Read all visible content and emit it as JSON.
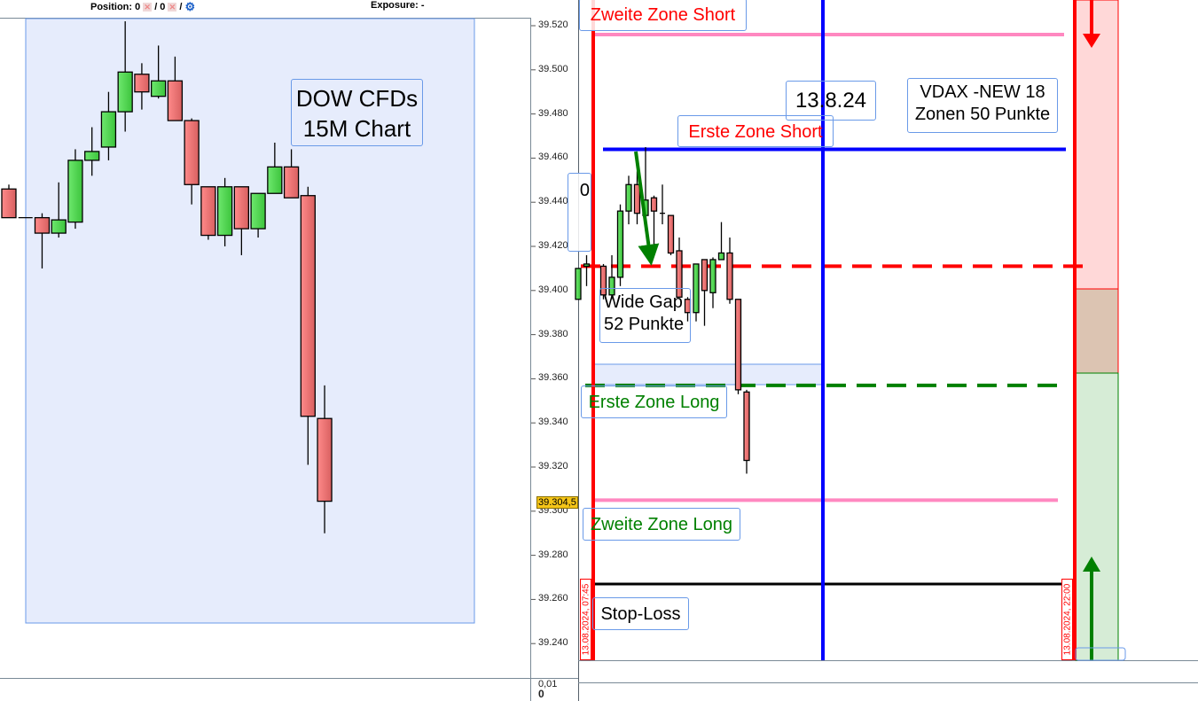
{
  "toolbar": {
    "position_label": "Position:",
    "position_long": "0",
    "position_short": "/ 0",
    "separator": "/",
    "exposure_label": "Exposure: -",
    "settings_icon": "gears-icon"
  },
  "colors": {
    "up": "#44cc44",
    "down": "#e06666",
    "zone_short_text": "#ff0000",
    "zone_long_text": "#008000",
    "blue_line": "#0000ff",
    "pink_line": "#ff88c0",
    "highlight_fill": "#e6ecfc"
  },
  "chart_data": [
    {
      "type": "candlestick",
      "title": "DOW CFDs 15M Chart",
      "annotation": {
        "line1": "DOW CFDs",
        "line2": "15M Chart"
      },
      "ylim": [
        39230,
        39530
      ],
      "y_ticks": [
        "39.520",
        "39.500",
        "39.480",
        "39.460",
        "39.440",
        "39.420",
        "39.400",
        "39.380",
        "39.360",
        "39.340",
        "39.320",
        "39.300",
        "39.280",
        "39.260",
        "39.240"
      ],
      "y_tick_values": [
        39520,
        39500,
        39480,
        39460,
        39440,
        39420,
        39400,
        39380,
        39360,
        39340,
        39320,
        39300,
        39280,
        39260,
        39240
      ],
      "current_price_label": "39.304,5",
      "current_price": 39304.5,
      "sub_panel_ticks": [
        "0,01",
        "0"
      ],
      "candles": [
        {
          "o": 39446,
          "h": 39448,
          "l": 39433,
          "c": 39433
        },
        {
          "o": 39433,
          "h": 39433,
          "l": 39433,
          "c": 39433
        },
        {
          "o": 39433,
          "h": 39435,
          "l": 39410,
          "c": 39426
        },
        {
          "o": 39426,
          "h": 39449,
          "l": 39424,
          "c": 39432
        },
        {
          "o": 39431,
          "h": 39464,
          "l": 39428,
          "c": 39459
        },
        {
          "o": 39459,
          "h": 39474,
          "l": 39452,
          "c": 39463
        },
        {
          "o": 39465,
          "h": 39490,
          "l": 39459,
          "c": 39481
        },
        {
          "o": 39481,
          "h": 39522,
          "l": 39472,
          "c": 39499
        },
        {
          "o": 39498,
          "h": 39503,
          "l": 39482,
          "c": 39490
        },
        {
          "o": 39488,
          "h": 39511,
          "l": 39487,
          "c": 39495
        },
        {
          "o": 39495,
          "h": 39506,
          "l": 39477,
          "c": 39477
        },
        {
          "o": 39477,
          "h": 39478,
          "l": 39439,
          "c": 39448
        },
        {
          "o": 39447,
          "h": 39447,
          "l": 39423,
          "c": 39425
        },
        {
          "o": 39425,
          "h": 39451,
          "l": 39420,
          "c": 39447
        },
        {
          "o": 39447,
          "h": 39447,
          "l": 39416,
          "c": 39428
        },
        {
          "o": 39428,
          "h": 39444,
          "l": 39424,
          "c": 39444
        },
        {
          "o": 39444,
          "h": 39467,
          "l": 39444,
          "c": 39456
        },
        {
          "o": 39456,
          "h": 39464,
          "l": 39442,
          "c": 39442
        },
        {
          "o": 39443,
          "h": 39447,
          "l": 39321,
          "c": 39343
        },
        {
          "o": 39342,
          "h": 39357,
          "l": 39290,
          "c": 39304.5
        }
      ]
    },
    {
      "type": "candlestick",
      "candles": [
        {
          "o": 39396,
          "h": 39410,
          "l": 39396,
          "c": 39410
        },
        {
          "o": 39411,
          "h": 39416,
          "l": 39402,
          "c": 39412
        },
        null,
        {
          "o": 39411,
          "h": 39412,
          "l": 39396,
          "c": 39398
        },
        {
          "o": 39398,
          "h": 39416,
          "l": 39396,
          "c": 39406
        },
        {
          "o": 39406,
          "h": 39439,
          "l": 39402,
          "c": 39436
        },
        {
          "o": 39436,
          "h": 39452,
          "l": 39430,
          "c": 39448
        },
        {
          "o": 39448,
          "h": 39454,
          "l": 39430,
          "c": 39435
        },
        {
          "o": 39434,
          "h": 39465,
          "l": 39427,
          "c": 39441
        },
        {
          "o": 39442,
          "h": 39443,
          "l": 39418,
          "c": 39436
        },
        {
          "o": 39435,
          "h": 39448,
          "l": 39430,
          "c": 39435
        },
        {
          "o": 39434,
          "h": 39434,
          "l": 39416,
          "c": 39417
        },
        {
          "o": 39418,
          "h": 39424,
          "l": 39397,
          "c": 39397
        },
        {
          "o": 39396,
          "h": 39397,
          "l": 39386,
          "c": 39390
        },
        {
          "o": 39390,
          "h": 39412,
          "l": 39386,
          "c": 39412
        },
        {
          "o": 39414,
          "h": 39414,
          "l": 39384,
          "c": 39400
        },
        {
          "o": 39399,
          "h": 39415,
          "l": 39392,
          "c": 39414
        },
        {
          "o": 39414,
          "h": 39431,
          "l": 39414,
          "c": 39417
        },
        {
          "o": 39417,
          "h": 39424,
          "l": 39394,
          "c": 39396
        },
        {
          "o": 39396,
          "h": 39396,
          "l": 39353,
          "c": 39355
        },
        {
          "o": 39354,
          "h": 39355,
          "l": 39317,
          "c": 39323
        }
      ],
      "levels": [
        {
          "name": "zweite-zone-short",
          "value": 39516,
          "style": "solid",
          "color": "#ff88c0"
        },
        {
          "name": "erste-zone-short",
          "value": 39464,
          "style": "solid",
          "color": "#0000ff"
        },
        {
          "name": "gap-level",
          "value": 39411,
          "style": "dashed",
          "color": "#ff0000"
        },
        {
          "name": "erste-zone-long",
          "value": 39357,
          "style": "dashed",
          "color": "#008000"
        },
        {
          "name": "zweite-zone-long",
          "value": 39305,
          "style": "solid",
          "color": "#ff88c0"
        },
        {
          "name": "stop-loss",
          "value": 39267,
          "style": "solid",
          "color": "#000000"
        }
      ],
      "labels": {
        "zweite_zone_short": "Zweite Zone Short",
        "erste_zone_short": "Erste Zone Short",
        "date_note": "13.8.24",
        "vdax_line1": "VDAX -NEW 18",
        "vdax_line2": "Zonen 50 Punkte",
        "cut_label": "0",
        "wide_gap_line1": "Wide Gap",
        "wide_gap_line2": "52 Punkte",
        "erste_zone_long": "Erste Zone Long",
        "zweite_zone_long": "Zweite Zone Long",
        "stop_loss": "Stop-Loss",
        "session_start": "13.08.2024, 07:45",
        "session_end": "13.08.2024, 22:00"
      }
    }
  ]
}
